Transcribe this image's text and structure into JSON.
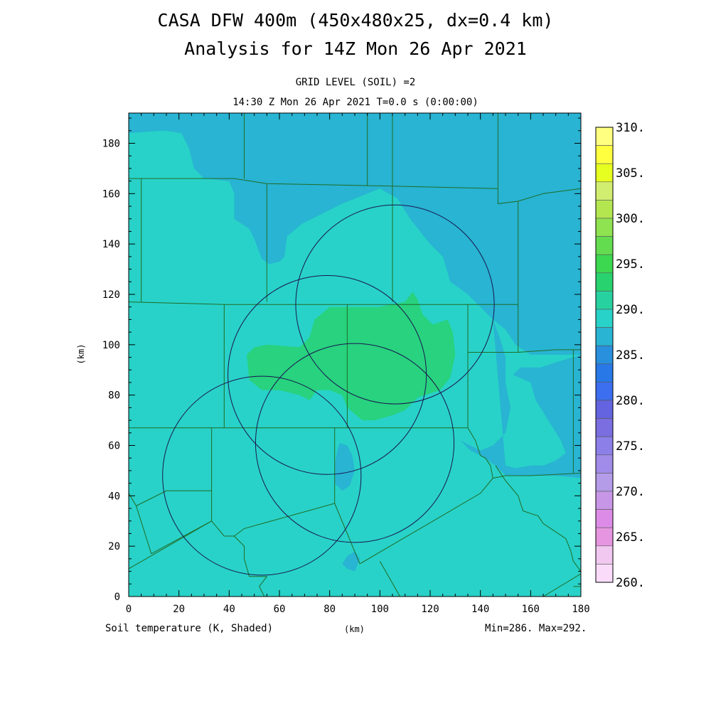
{
  "header": {
    "title_line1": "CASA DFW 400m (450x480x25, dx=0.4 km)",
    "title_line2": "Analysis for 14Z Mon 26 Apr 2021",
    "subtitle_line1": "GRID LEVEL (SOIL) =2",
    "subtitle_line2": "14:30 Z Mon 26 Apr 2021   T=0.0 s (0:00:00)"
  },
  "axes": {
    "x_unit": "(km)",
    "y_unit": "(km)",
    "x_ticks": [
      "0",
      "20",
      "40",
      "60",
      "80",
      "100",
      "120",
      "140",
      "160",
      "180"
    ],
    "y_ticks": [
      "0",
      "20",
      "40",
      "60",
      "80",
      "100",
      "120",
      "140",
      "160",
      "180"
    ],
    "xlim": [
      0,
      180
    ],
    "ylim": [
      0,
      192
    ]
  },
  "footer": {
    "field_label": "Soil temperature (K, Shaded)",
    "x_unit": "(km)",
    "min_max": "Min=286. Max=292."
  },
  "colorbar": {
    "labels": [
      "310.",
      "305.",
      "300.",
      "295.",
      "290.",
      "285.",
      "280.",
      "275.",
      "270.",
      "265.",
      "260."
    ],
    "colors_top_to_bottom": [
      "#ffff80",
      "#ffff40",
      "#e6ff20",
      "#d2ee70",
      "#b4e650",
      "#8fe250",
      "#64dc50",
      "#3cd850",
      "#28d26e",
      "#28d2a0",
      "#28d2c8",
      "#28b4d2",
      "#2890dc",
      "#2878e8",
      "#3c6ef0",
      "#6464e0",
      "#7a6ee0",
      "#8c80e8",
      "#a08ce8",
      "#b49ce8",
      "#c896e6",
      "#dc8ce6",
      "#e696e0",
      "#f0c8f0",
      "#fadcfa"
    ]
  },
  "chart_data": {
    "type": "heatmap",
    "field": "Soil temperature (K, Shaded)",
    "xlabel": "(km)",
    "ylabel": "(km)",
    "xlim": [
      0,
      180
    ],
    "ylim": [
      0,
      192
    ],
    "levels": [
      286,
      288,
      290
    ],
    "level_colors": [
      "#28b4d2",
      "#28d2c8",
      "#28d27e"
    ],
    "regions": [
      {
        "name": "cool-zone-north",
        "level": "#28b4d2",
        "poly": [
          [
            0,
            192
          ],
          [
            0,
            184
          ],
          [
            14,
            185
          ],
          [
            21,
            184
          ],
          [
            24,
            178
          ],
          [
            26,
            170
          ],
          [
            30,
            166
          ],
          [
            40,
            165
          ],
          [
            42,
            160
          ],
          [
            42,
            150
          ],
          [
            48,
            146
          ],
          [
            50,
            142
          ],
          [
            53,
            134
          ],
          [
            56,
            132
          ],
          [
            60,
            133
          ],
          [
            62,
            135
          ],
          [
            63,
            143
          ],
          [
            69,
            148
          ],
          [
            75,
            151
          ],
          [
            85,
            156
          ],
          [
            95,
            160
          ],
          [
            100,
            162
          ],
          [
            107,
            158
          ],
          [
            112,
            150
          ],
          [
            120,
            140
          ],
          [
            125,
            135
          ],
          [
            128,
            125
          ],
          [
            135,
            120
          ],
          [
            140,
            115
          ],
          [
            145,
            110
          ],
          [
            150,
            106
          ],
          [
            154,
            100
          ],
          [
            160,
            96
          ],
          [
            170,
            96
          ],
          [
            180,
            96
          ],
          [
            180,
            192
          ]
        ]
      },
      {
        "name": "cool-zone-east",
        "level": "#28b4d2",
        "poly": [
          [
            145,
            110
          ],
          [
            148,
            102
          ],
          [
            150,
            95
          ],
          [
            150,
            85
          ],
          [
            152,
            75
          ],
          [
            150,
            65
          ],
          [
            145,
            60
          ],
          [
            140,
            58
          ],
          [
            136,
            60
          ],
          [
            132,
            62
          ],
          [
            136,
            58
          ],
          [
            140,
            56
          ],
          [
            146,
            52
          ],
          [
            150,
            48
          ],
          [
            160,
            48
          ],
          [
            170,
            48
          ],
          [
            180,
            47
          ],
          [
            180,
            96
          ],
          [
            170,
            93
          ],
          [
            164,
            91
          ],
          [
            156,
            91
          ],
          [
            153,
            88
          ],
          [
            160,
            85
          ],
          [
            162,
            78
          ],
          [
            167,
            70
          ],
          [
            172,
            62
          ],
          [
            174,
            57
          ],
          [
            170,
            54
          ],
          [
            165,
            52
          ],
          [
            160,
            52
          ],
          [
            154,
            51
          ],
          [
            150,
            52
          ]
        ]
      },
      {
        "name": "cool-spot-center",
        "level": "#28b4d2",
        "poly": [
          [
            84,
            61
          ],
          [
            87,
            60
          ],
          [
            89,
            56
          ],
          [
            90,
            50
          ],
          [
            88,
            44
          ],
          [
            85,
            42
          ],
          [
            82,
            45
          ],
          [
            82,
            52
          ],
          [
            83,
            58
          ]
        ]
      },
      {
        "name": "cool-spot-south",
        "level": "#28b4d2",
        "poly": [
          [
            87,
            16
          ],
          [
            90,
            18
          ],
          [
            92,
            15
          ],
          [
            90,
            10
          ],
          [
            87,
            11
          ],
          [
            85,
            13
          ]
        ]
      },
      {
        "name": "warm-zone-center",
        "level": "#28d27e",
        "poly": [
          [
            47,
            96
          ],
          [
            50,
            99
          ],
          [
            55,
            100
          ],
          [
            68,
            99
          ],
          [
            72,
            103
          ],
          [
            74,
            110
          ],
          [
            80,
            115
          ],
          [
            100,
            115
          ],
          [
            110,
            117
          ],
          [
            113,
            121
          ],
          [
            115,
            118
          ],
          [
            117,
            112
          ],
          [
            121,
            108
          ],
          [
            127,
            110
          ],
          [
            129,
            105
          ],
          [
            130,
            96
          ],
          [
            128,
            87
          ],
          [
            124,
            82
          ],
          [
            115,
            79
          ],
          [
            110,
            74
          ],
          [
            105,
            72
          ],
          [
            98,
            70
          ],
          [
            93,
            70
          ],
          [
            87,
            75
          ],
          [
            85,
            80
          ],
          [
            80,
            82
          ],
          [
            75,
            82
          ],
          [
            72,
            78
          ],
          [
            68,
            80
          ],
          [
            60,
            82
          ],
          [
            53,
            82
          ],
          [
            48,
            86
          ]
        ]
      }
    ],
    "county_lines": [
      [
        [
          5,
          166
        ],
        [
          5,
          117
        ]
      ],
      [
        [
          0,
          166
        ],
        [
          42,
          166
        ],
        [
          55,
          164
        ],
        [
          105,
          163
        ],
        [
          147,
          162
        ]
      ],
      [
        [
          46,
          192
        ],
        [
          46,
          166
        ]
      ],
      [
        [
          95,
          192
        ],
        [
          95,
          163
        ]
      ],
      [
        [
          105,
          192
        ],
        [
          105,
          163
        ]
      ],
      [
        [
          147,
          192
        ],
        [
          147,
          156
        ],
        [
          155,
          157
        ],
        [
          165,
          160
        ],
        [
          180,
          162
        ]
      ],
      [
        [
          55,
          164
        ],
        [
          55,
          117
        ]
      ],
      [
        [
          105,
          163
        ],
        [
          105,
          117
        ]
      ],
      [
        [
          155,
          157
        ],
        [
          155,
          97
        ]
      ],
      [
        [
          0,
          117
        ],
        [
          38,
          116
        ],
        [
          75,
          116
        ],
        [
          130,
          116
        ],
        [
          155,
          116
        ]
      ],
      [
        [
          38,
          116
        ],
        [
          38,
          67
        ]
      ],
      [
        [
          87,
          116
        ],
        [
          87,
          67
        ]
      ],
      [
        [
          135,
          116
        ],
        [
          135,
          67
        ]
      ],
      [
        [
          135,
          97
        ],
        [
          155,
          97
        ],
        [
          170,
          98
        ],
        [
          180,
          98
        ]
      ],
      [
        [
          0,
          67
        ],
        [
          33,
          67
        ],
        [
          38,
          67
        ],
        [
          87,
          67
        ],
        [
          135,
          67
        ]
      ],
      [
        [
          33,
          67
        ],
        [
          33,
          30
        ]
      ],
      [
        [
          82,
          67
        ],
        [
          82,
          37
        ]
      ],
      [
        [
          0,
          41
        ],
        [
          3,
          36
        ],
        [
          9,
          17
        ]
      ],
      [
        [
          3,
          36
        ],
        [
          15,
          42
        ],
        [
          33,
          42
        ]
      ],
      [
        [
          9,
          17
        ],
        [
          33,
          30
        ]
      ],
      [
        [
          0,
          11
        ],
        [
          33,
          30
        ]
      ],
      [
        [
          33,
          30
        ],
        [
          38,
          24
        ],
        [
          42,
          24
        ],
        [
          46,
          27
        ],
        [
          82,
          37
        ]
      ],
      [
        [
          42,
          24
        ],
        [
          46,
          20
        ],
        [
          46,
          15
        ],
        [
          48,
          8
        ],
        [
          55,
          8
        ],
        [
          52,
          4
        ],
        [
          54,
          0
        ]
      ],
      [
        [
          82,
          37
        ],
        [
          92,
          13
        ]
      ],
      [
        [
          92,
          13
        ],
        [
          140,
          41
        ],
        [
          145,
          47
        ]
      ],
      [
        [
          100,
          14
        ],
        [
          108,
          0
        ]
      ],
      [
        [
          135,
          67
        ],
        [
          138,
          62
        ],
        [
          140,
          56
        ],
        [
          142,
          55
        ],
        [
          144,
          52
        ],
        [
          145,
          47
        ],
        [
          150,
          48
        ],
        [
          160,
          48
        ],
        [
          180,
          49
        ]
      ],
      [
        [
          146,
          52
        ],
        [
          150,
          46
        ],
        [
          155,
          40
        ],
        [
          157,
          34
        ],
        [
          163,
          32
        ],
        [
          165,
          29
        ],
        [
          168,
          27
        ],
        [
          174,
          23
        ],
        [
          176,
          18
        ],
        [
          177,
          14
        ],
        [
          180,
          10
        ]
      ],
      [
        [
          177,
          98
        ],
        [
          177,
          49
        ]
      ],
      [
        [
          165,
          0
        ],
        [
          180,
          9
        ]
      ],
      [
        [
          177,
          4
        ],
        [
          180,
          4
        ]
      ]
    ],
    "radar_circles": [
      {
        "cx": 106,
        "cy": 116,
        "r": 39.5
      },
      {
        "cx": 79,
        "cy": 88,
        "r": 39.5
      },
      {
        "cx": 90,
        "cy": 61,
        "r": 39.5
      },
      {
        "cx": 53,
        "cy": 48,
        "r": 39.5
      }
    ]
  }
}
